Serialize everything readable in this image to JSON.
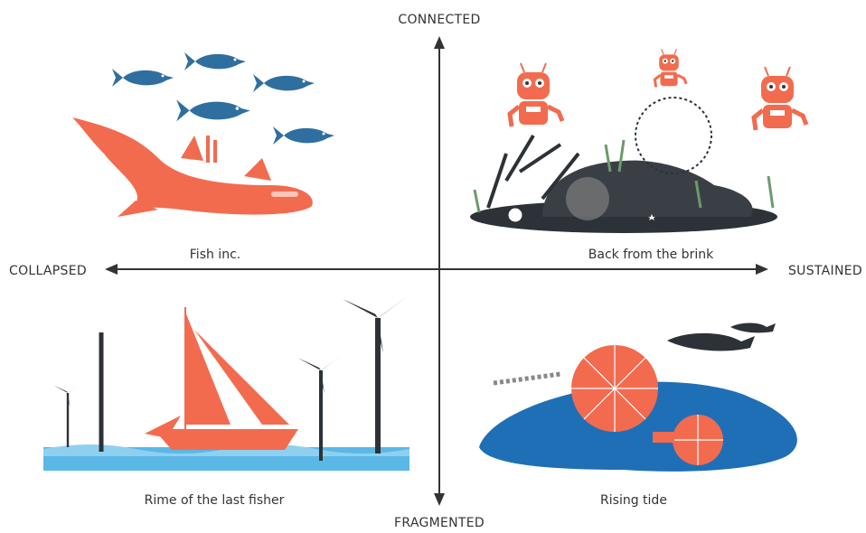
{
  "axes": {
    "top": "CONNECTED",
    "bottom": "FRAGMENTED",
    "left": "COLLAPSED",
    "right": "SUSTAINED"
  },
  "quadrants": [
    {
      "label": "Fish inc."
    },
    {
      "label": "Back from the brink"
    },
    {
      "label": "Rime of the last fisher"
    },
    {
      "label": "Rising tide"
    }
  ]
}
